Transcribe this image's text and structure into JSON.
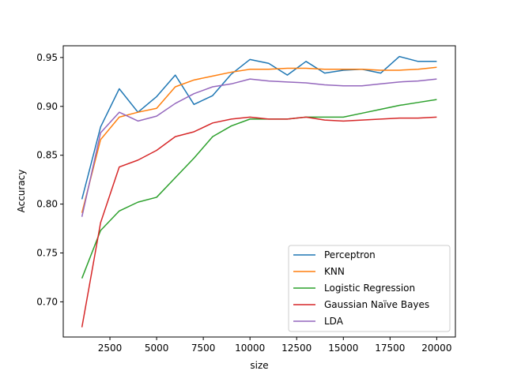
{
  "chart_data": {
    "type": "line",
    "title": "",
    "xlabel": "size",
    "ylabel": "Accuracy",
    "xlim": [
      0,
      21000
    ],
    "ylim": [
      0.664,
      0.962
    ],
    "xticks": [
      2500,
      5000,
      7500,
      10000,
      12500,
      15000,
      17500,
      20000
    ],
    "xtick_labels": [
      "2500",
      "5000",
      "7500",
      "10000",
      "12500",
      "15000",
      "17500",
      "20000"
    ],
    "yticks": [
      0.7,
      0.75,
      0.8,
      0.85,
      0.9,
      0.95
    ],
    "ytick_labels": [
      "0.70",
      "0.75",
      "0.80",
      "0.85",
      "0.90",
      "0.95"
    ],
    "legend_position": "lower-right",
    "grid": false,
    "x": [
      1000,
      2000,
      3000,
      4000,
      5000,
      6000,
      7000,
      8000,
      9000,
      10000,
      11000,
      12000,
      13000,
      14000,
      15000,
      16000,
      17000,
      18000,
      19000,
      20000
    ],
    "series": [
      {
        "name": "Perceptron",
        "color": "#1f77b4",
        "values": [
          0.805,
          0.879,
          0.918,
          0.894,
          0.91,
          0.932,
          0.902,
          0.911,
          0.933,
          0.948,
          0.944,
          0.932,
          0.946,
          0.934,
          0.937,
          0.938,
          0.934,
          0.951,
          0.946,
          0.946
        ]
      },
      {
        "name": "KNN",
        "color": "#ff7f0e",
        "values": [
          0.791,
          0.866,
          0.889,
          0.894,
          0.898,
          0.92,
          0.927,
          0.931,
          0.935,
          0.938,
          0.938,
          0.939,
          0.939,
          0.938,
          0.938,
          0.938,
          0.937,
          0.937,
          0.938,
          0.94
        ]
      },
      {
        "name": "Logistic Regression",
        "color": "#2ca02c",
        "values": [
          0.724,
          0.773,
          0.793,
          0.802,
          0.807,
          0.827,
          0.847,
          0.869,
          0.88,
          0.887,
          0.887,
          0.887,
          0.889,
          0.889,
          0.889,
          0.893,
          0.897,
          0.901,
          0.904,
          0.907
        ]
      },
      {
        "name": "Gaussian Naïve Bayes",
        "color": "#d62728",
        "values": [
          0.674,
          0.781,
          0.838,
          0.845,
          0.855,
          0.869,
          0.874,
          0.883,
          0.887,
          0.889,
          0.887,
          0.887,
          0.889,
          0.886,
          0.885,
          0.886,
          0.887,
          0.888,
          0.888,
          0.889
        ]
      },
      {
        "name": "LDA",
        "color": "#9467bd",
        "values": [
          0.787,
          0.873,
          0.894,
          0.885,
          0.89,
          0.903,
          0.913,
          0.92,
          0.923,
          0.928,
          0.926,
          0.925,
          0.924,
          0.922,
          0.921,
          0.921,
          0.923,
          0.925,
          0.926,
          0.928
        ]
      }
    ]
  }
}
